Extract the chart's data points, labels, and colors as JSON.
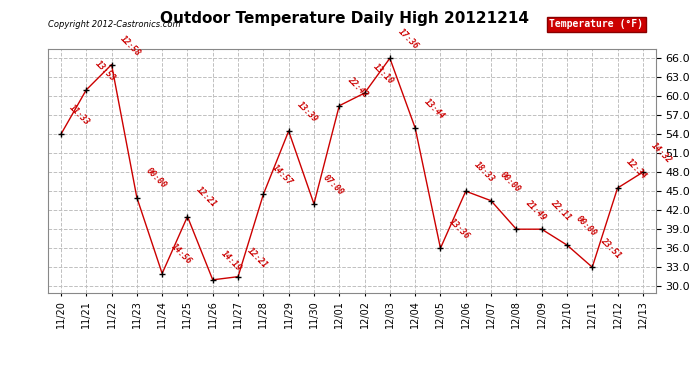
{
  "title": "Outdoor Temperature Daily High 20121214",
  "copyright": "Copyright 2012-Castronics.com",
  "legend_label": "Temperature (°F)",
  "background_color": "#ffffff",
  "plot_bg_color": "#ffffff",
  "line_color": "#cc0000",
  "marker_color": "#000000",
  "label_color": "#cc0000",
  "legend_bg": "#cc0000",
  "legend_text_color": "#ffffff",
  "ylim": [
    29.0,
    67.5
  ],
  "yticks": [
    30.0,
    33.0,
    36.0,
    39.0,
    42.0,
    45.0,
    48.0,
    51.0,
    54.0,
    57.0,
    60.0,
    63.0,
    66.0
  ],
  "dates": [
    "11/20",
    "11/21",
    "11/22",
    "11/23",
    "11/24",
    "11/25",
    "11/26",
    "11/27",
    "11/28",
    "11/29",
    "11/30",
    "12/01",
    "12/02",
    "12/03",
    "12/04",
    "12/05",
    "12/06",
    "12/07",
    "12/08",
    "12/09",
    "12/10",
    "12/11",
    "12/12",
    "12/13"
  ],
  "values": [
    54.0,
    61.0,
    65.0,
    44.0,
    32.0,
    41.0,
    31.0,
    31.5,
    44.5,
    54.5,
    43.0,
    58.5,
    60.5,
    66.0,
    55.0,
    36.0,
    45.0,
    43.5,
    39.0,
    39.0,
    36.5,
    33.0,
    45.5,
    48.0
  ],
  "annotations": [
    "11:33",
    "13:53",
    "12:58",
    "00:00",
    "14:56",
    "12:21",
    "14:19",
    "12:21",
    "14:57",
    "13:39",
    "07:00",
    "22:42",
    "13:10",
    "17:36",
    "13:44",
    "13:36",
    "18:33",
    "00:00",
    "21:49",
    "22:11",
    "00:00",
    "23:51",
    "12:34",
    "14:32"
  ],
  "ann_xoffset": [
    -10,
    -10,
    8,
    8,
    8,
    8,
    8,
    8,
    8,
    8,
    8,
    8,
    8,
    8,
    8,
    8,
    8,
    8,
    8,
    8,
    8,
    8,
    8,
    8
  ],
  "ann_yoffset": [
    5,
    5,
    5,
    5,
    5,
    5,
    5,
    5,
    5,
    5,
    5,
    5,
    5,
    5,
    5,
    5,
    5,
    5,
    5,
    5,
    5,
    5,
    5,
    5
  ]
}
